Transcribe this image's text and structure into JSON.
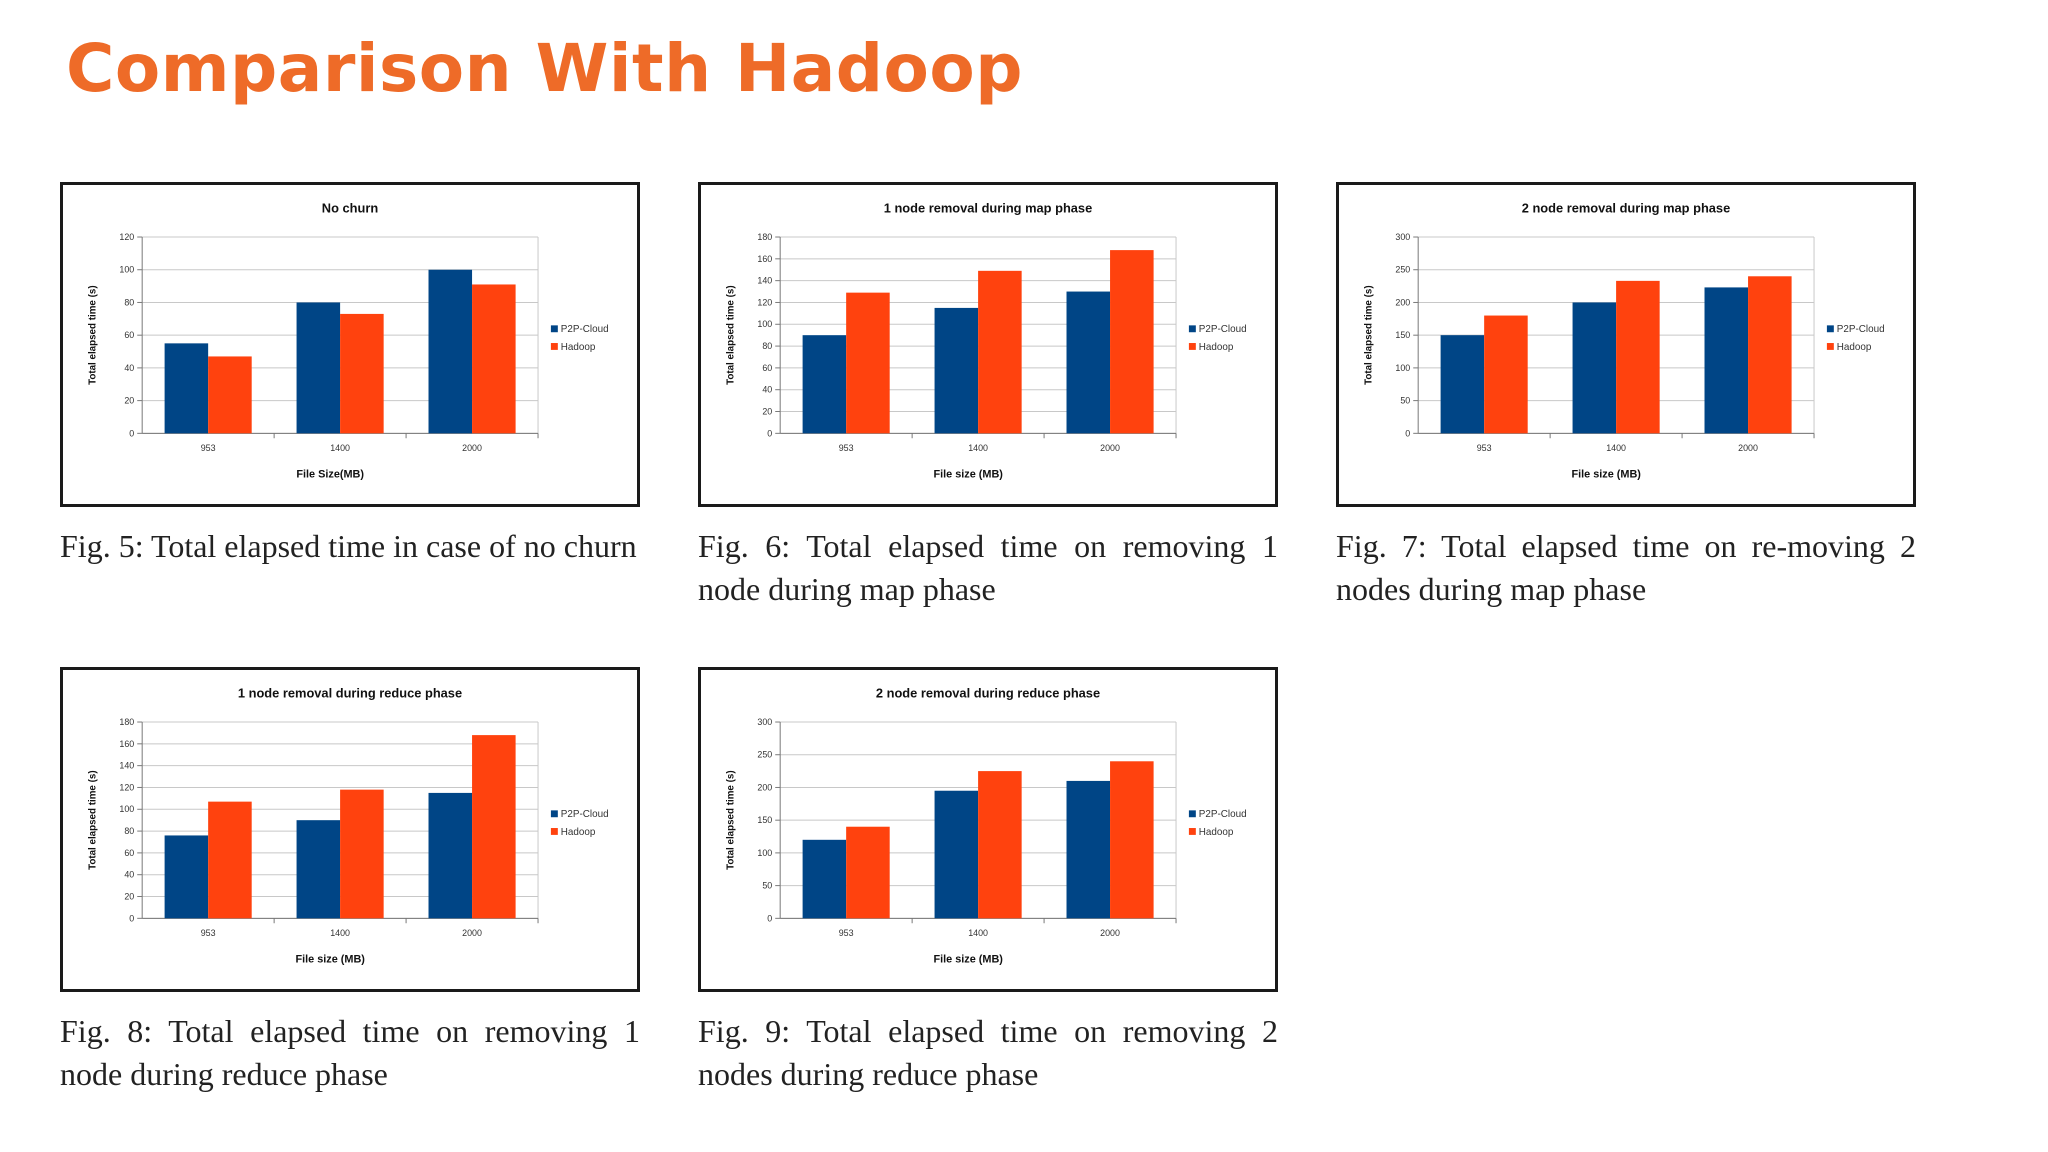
{
  "slide": {
    "title": "Comparison With Hadoop"
  },
  "colors": {
    "title": "#ee6b28",
    "p2p": "#004586",
    "hadoop": "#ff420e"
  },
  "chart_data": [
    {
      "type": "bar",
      "title": "No churn",
      "xlabel": "File Size(MB)",
      "ylabel": "Total elapsed time (s)",
      "categories": [
        "953",
        "1400",
        "2000"
      ],
      "ylim": [
        0,
        120
      ],
      "yticks": [
        0,
        20,
        40,
        60,
        80,
        100,
        120
      ],
      "series": [
        {
          "name": "P2P-Cloud",
          "values": [
            55,
            80,
            100
          ]
        },
        {
          "name": "Hadoop",
          "values": [
            47,
            73,
            91
          ]
        }
      ],
      "legend": "right",
      "grid": true,
      "caption": "Fig. 5: Total elapsed time in case of no churn"
    },
    {
      "type": "bar",
      "title": "1 node removal during map phase",
      "xlabel": "File size (MB)",
      "ylabel": "Total elapsed time (s)",
      "categories": [
        "953",
        "1400",
        "2000"
      ],
      "ylim": [
        0,
        180
      ],
      "yticks": [
        0,
        20,
        40,
        60,
        80,
        100,
        120,
        140,
        160,
        180
      ],
      "series": [
        {
          "name": "P2P-Cloud",
          "values": [
            90,
            115,
            130
          ]
        },
        {
          "name": "Hadoop",
          "values": [
            129,
            149,
            168
          ]
        }
      ],
      "legend": "right",
      "grid": true,
      "caption": "Fig. 6: Total elapsed time on removing 1 node during map phase"
    },
    {
      "type": "bar",
      "title": "2 node removal during map phase",
      "xlabel": "File size (MB)",
      "ylabel": "Total elapsed time (s)",
      "categories": [
        "953",
        "1400",
        "2000"
      ],
      "ylim": [
        0,
        300
      ],
      "yticks": [
        0,
        50,
        100,
        150,
        200,
        250,
        300
      ],
      "series": [
        {
          "name": "P2P-Cloud",
          "values": [
            150,
            200,
            223
          ]
        },
        {
          "name": "Hadoop",
          "values": [
            180,
            233,
            240
          ]
        }
      ],
      "legend": "right",
      "grid": true,
      "caption": "Fig. 7: Total elapsed time on re-moving 2 nodes during map phase"
    },
    {
      "type": "bar",
      "title": "1 node removal during reduce phase",
      "xlabel": "File size (MB)",
      "ylabel": "Total elapsed time (s)",
      "categories": [
        "953",
        "1400",
        "2000"
      ],
      "ylim": [
        0,
        180
      ],
      "yticks": [
        0,
        20,
        40,
        60,
        80,
        100,
        120,
        140,
        160,
        180
      ],
      "series": [
        {
          "name": "P2P-Cloud",
          "values": [
            76,
            90,
            115
          ]
        },
        {
          "name": "Hadoop",
          "values": [
            107,
            118,
            168
          ]
        }
      ],
      "legend": "right",
      "grid": true,
      "caption": "Fig. 8: Total elapsed time on removing 1 node during reduce phase"
    },
    {
      "type": "bar",
      "title": "2 node removal during reduce phase",
      "xlabel": "File size (MB)",
      "ylabel": "Total elapsed time (s)",
      "categories": [
        "953",
        "1400",
        "2000"
      ],
      "ylim": [
        0,
        300
      ],
      "yticks": [
        0,
        50,
        100,
        150,
        200,
        250,
        300
      ],
      "series": [
        {
          "name": "P2P-Cloud",
          "values": [
            120,
            195,
            210
          ]
        },
        {
          "name": "Hadoop",
          "values": [
            140,
            225,
            240
          ]
        }
      ],
      "legend": "right",
      "grid": true,
      "caption": "Fig. 9: Total elapsed time on removing 2 nodes during reduce phase"
    }
  ]
}
